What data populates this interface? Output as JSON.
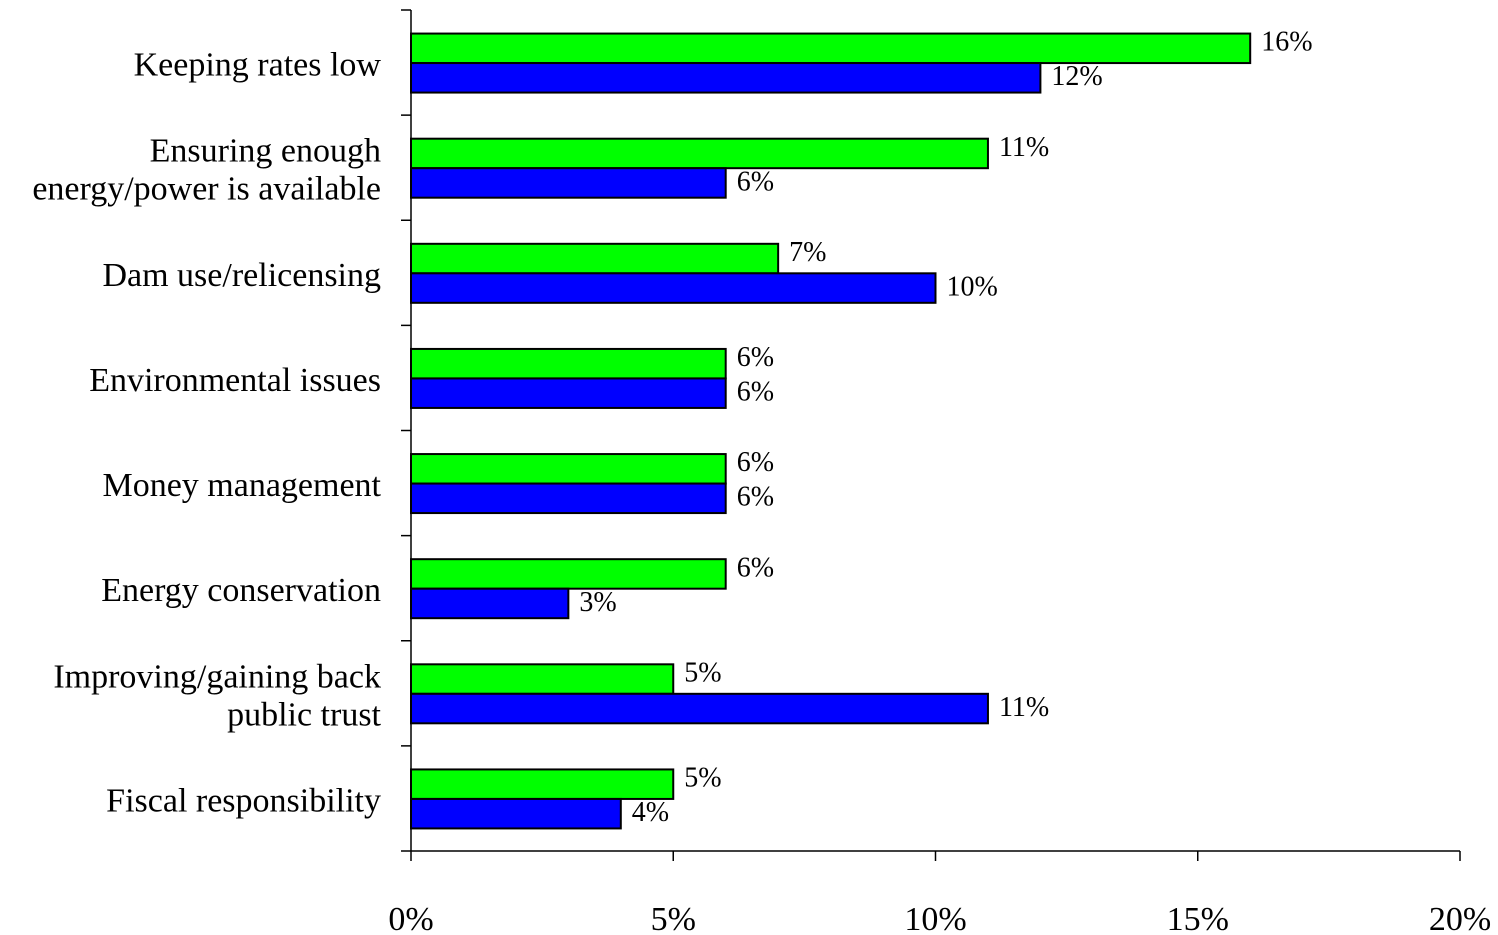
{
  "chart_data": {
    "type": "bar",
    "orientation": "horizontal",
    "categories": [
      [
        "Keeping rates low"
      ],
      [
        "Ensuring enough",
        "energy/power is available"
      ],
      [
        "Dam use/relicensing"
      ],
      [
        "Environmental issues"
      ],
      [
        "Money management"
      ],
      [
        "Energy conservation"
      ],
      [
        "Improving/gaining back",
        "public trust"
      ],
      [
        "Fiscal responsibility"
      ]
    ],
    "series": [
      {
        "color": "#00ff00",
        "values": [
          16,
          11,
          7,
          6,
          6,
          6,
          5,
          5
        ],
        "labels": [
          "16%",
          "11%",
          "7%",
          "6%",
          "6%",
          "6%",
          "5%",
          "5%"
        ]
      },
      {
        "color": "#0000ff",
        "values": [
          12,
          6,
          10,
          6,
          6,
          3,
          11,
          4
        ],
        "labels": [
          "12%",
          "6%",
          "10%",
          "6%",
          "6%",
          "3%",
          "11%",
          "4%"
        ]
      }
    ],
    "x_ticks": [
      0,
      5,
      10,
      15,
      20
    ],
    "x_tick_labels": [
      "0%",
      "5%",
      "10%",
      "15%",
      "20%"
    ],
    "xlim": [
      0,
      20
    ],
    "title": "",
    "xlabel": "",
    "ylabel": "",
    "grid": false,
    "legend": false
  }
}
